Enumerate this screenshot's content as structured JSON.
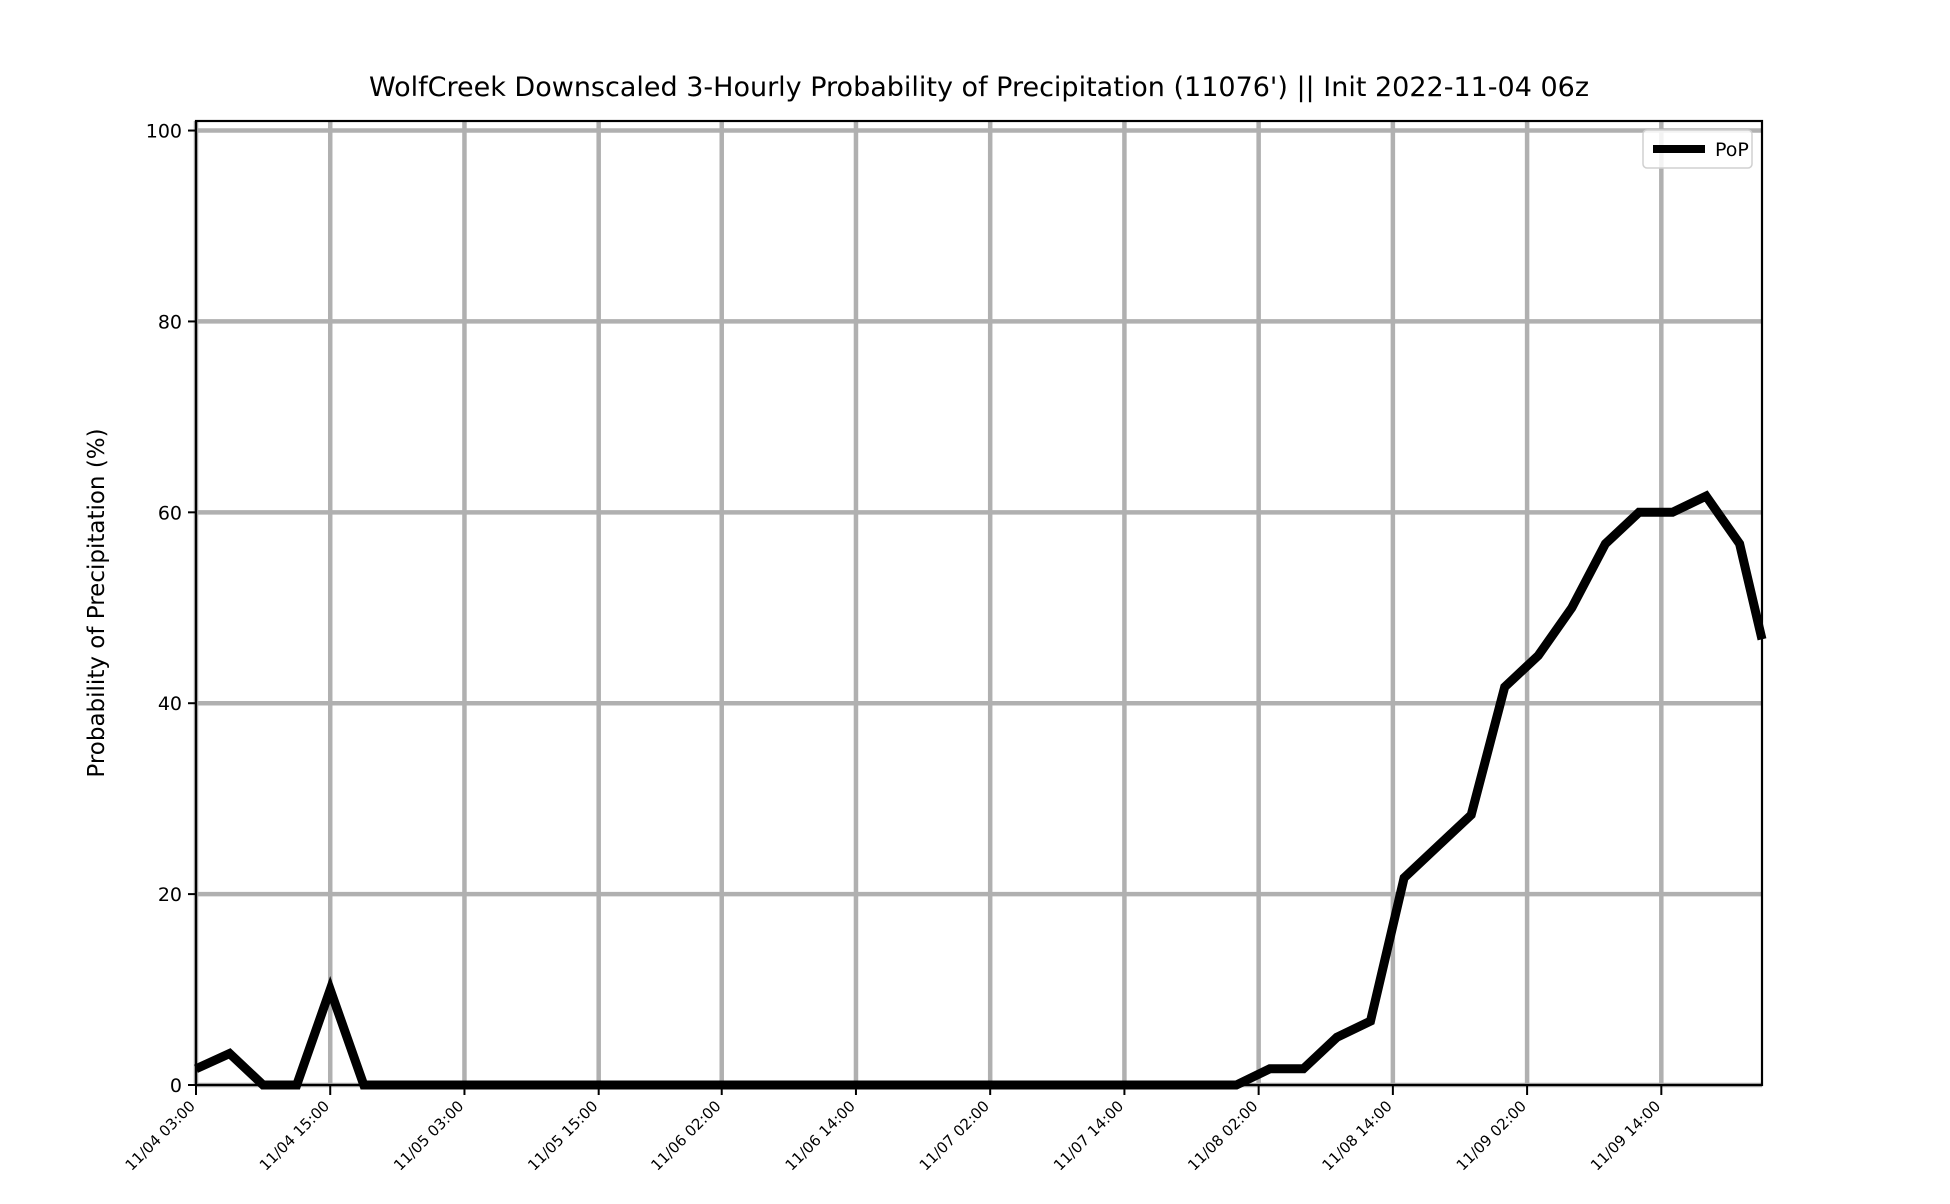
{
  "chart_data": {
    "type": "line",
    "title": "WolfCreek Downscaled 3-Hourly Probability of Precipitation (11076') || Init 2022-11-04 06z",
    "xlabel": "",
    "ylabel": "Probability of Precipitation (%)",
    "ylim": [
      0,
      101
    ],
    "yticks": [
      0,
      20,
      40,
      60,
      80,
      100
    ],
    "xlim": [
      "11/04 03:00",
      "11/09 23:00"
    ],
    "xtick_labels": [
      "11/04 03:00",
      "11/04 15:00",
      "11/05 03:00",
      "11/05 15:00",
      "11/06 02:00",
      "11/06 14:00",
      "11/07 02:00",
      "11/07 14:00",
      "11/08 02:00",
      "11/08 14:00",
      "11/09 02:00",
      "11/09 14:00"
    ],
    "grid": true,
    "legend_position": "upper-right",
    "series": [
      {
        "name": "PoP",
        "color": "#000000",
        "x": [
          "11/04 03:00",
          "11/04 06:00",
          "11/04 09:00",
          "11/04 12:00",
          "11/04 15:00",
          "11/04 18:00",
          "11/04 21:00",
          "11/05 00:00",
          "11/05 03:00",
          "11/05 06:00",
          "11/05 09:00",
          "11/05 12:00",
          "11/05 15:00",
          "11/05 18:00",
          "11/05 21:00",
          "11/06 00:00",
          "11/06 03:00",
          "11/06 06:00",
          "11/06 09:00",
          "11/06 12:00",
          "11/06 15:00",
          "11/06 18:00",
          "11/06 21:00",
          "11/07 00:00",
          "11/07 03:00",
          "11/07 06:00",
          "11/07 09:00",
          "11/07 12:00",
          "11/07 15:00",
          "11/07 18:00",
          "11/07 21:00",
          "11/08 00:00",
          "11/08 03:00",
          "11/08 06:00",
          "11/08 09:00",
          "11/08 12:00",
          "11/08 15:00",
          "11/08 18:00",
          "11/08 21:00",
          "11/09 00:00",
          "11/09 03:00",
          "11/09 06:00",
          "11/09 09:00",
          "11/09 12:00",
          "11/09 15:00",
          "11/09 18:00",
          "11/09 21:00",
          "11/09 23:00"
        ],
        "values": [
          1.7,
          3.3,
          0,
          0,
          10,
          0,
          0,
          0,
          0,
          0,
          0,
          0,
          0,
          0,
          0,
          0,
          0,
          0,
          0,
          0,
          0,
          0,
          0,
          0,
          0,
          0,
          0,
          0,
          0,
          0,
          0,
          0,
          1.7,
          1.7,
          5,
          6.7,
          21.7,
          25,
          28.3,
          41.7,
          45,
          50,
          56.7,
          60,
          60,
          61.7,
          56.7,
          46.7
        ]
      }
    ]
  }
}
